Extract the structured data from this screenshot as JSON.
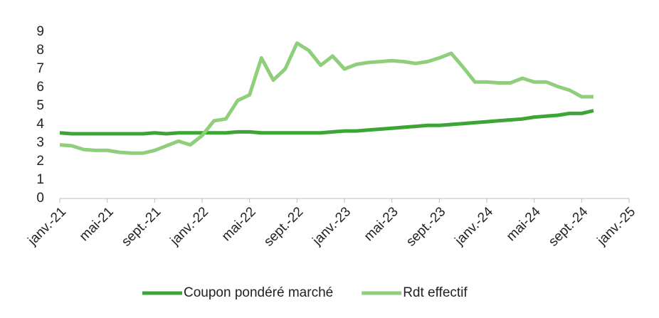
{
  "chart_data": {
    "type": "line",
    "categories": [
      "janv.-21",
      null,
      null,
      null,
      "mai-21",
      null,
      null,
      null,
      "sept.-21",
      null,
      null,
      null,
      "janv.-22",
      null,
      null,
      null,
      "mai-22",
      null,
      null,
      null,
      "sept.-22",
      null,
      null,
      null,
      "janv.-23",
      null,
      null,
      null,
      "mai-23",
      null,
      null,
      null,
      "sept.-23",
      null,
      null,
      null,
      "janv.-24",
      null,
      null,
      null,
      "mai-24",
      null,
      null,
      null,
      "sept.-24",
      null,
      null,
      null,
      "janv.-25"
    ],
    "series": [
      {
        "name": "Coupon pondéré marché",
        "color": "#3da535",
        "values": [
          3.55,
          3.5,
          3.5,
          3.5,
          3.5,
          3.5,
          3.5,
          3.5,
          3.55,
          3.5,
          3.55,
          3.55,
          3.55,
          3.55,
          3.55,
          3.6,
          3.6,
          3.55,
          3.55,
          3.55,
          3.55,
          3.55,
          3.55,
          3.6,
          3.65,
          3.65,
          3.7,
          3.75,
          3.8,
          3.85,
          3.9,
          3.95,
          3.95,
          4.0,
          4.05,
          4.1,
          4.15,
          4.2,
          4.25,
          4.3,
          4.4,
          4.45,
          4.5,
          4.6,
          4.6,
          4.75,
          null,
          null,
          null
        ]
      },
      {
        "name": "Rdt effectif",
        "color": "#8fce7b",
        "values": [
          2.9,
          2.85,
          2.65,
          2.6,
          2.6,
          2.5,
          2.45,
          2.45,
          2.6,
          2.85,
          3.1,
          2.9,
          3.4,
          4.2,
          4.3,
          5.3,
          5.6,
          7.6,
          6.4,
          7.0,
          8.4,
          8.0,
          7.2,
          7.7,
          7.0,
          7.25,
          7.35,
          7.4,
          7.45,
          7.4,
          7.3,
          7.4,
          7.6,
          7.85,
          7.1,
          6.3,
          6.3,
          6.25,
          6.25,
          6.5,
          6.3,
          6.3,
          6.05,
          5.85,
          5.5,
          5.5,
          null,
          null,
          null
        ]
      }
    ],
    "ylim": [
      0,
      9
    ],
    "yticks": [
      0,
      1,
      2,
      3,
      4,
      5,
      6,
      7,
      8,
      9
    ],
    "grid": false,
    "legend": "bottom"
  }
}
